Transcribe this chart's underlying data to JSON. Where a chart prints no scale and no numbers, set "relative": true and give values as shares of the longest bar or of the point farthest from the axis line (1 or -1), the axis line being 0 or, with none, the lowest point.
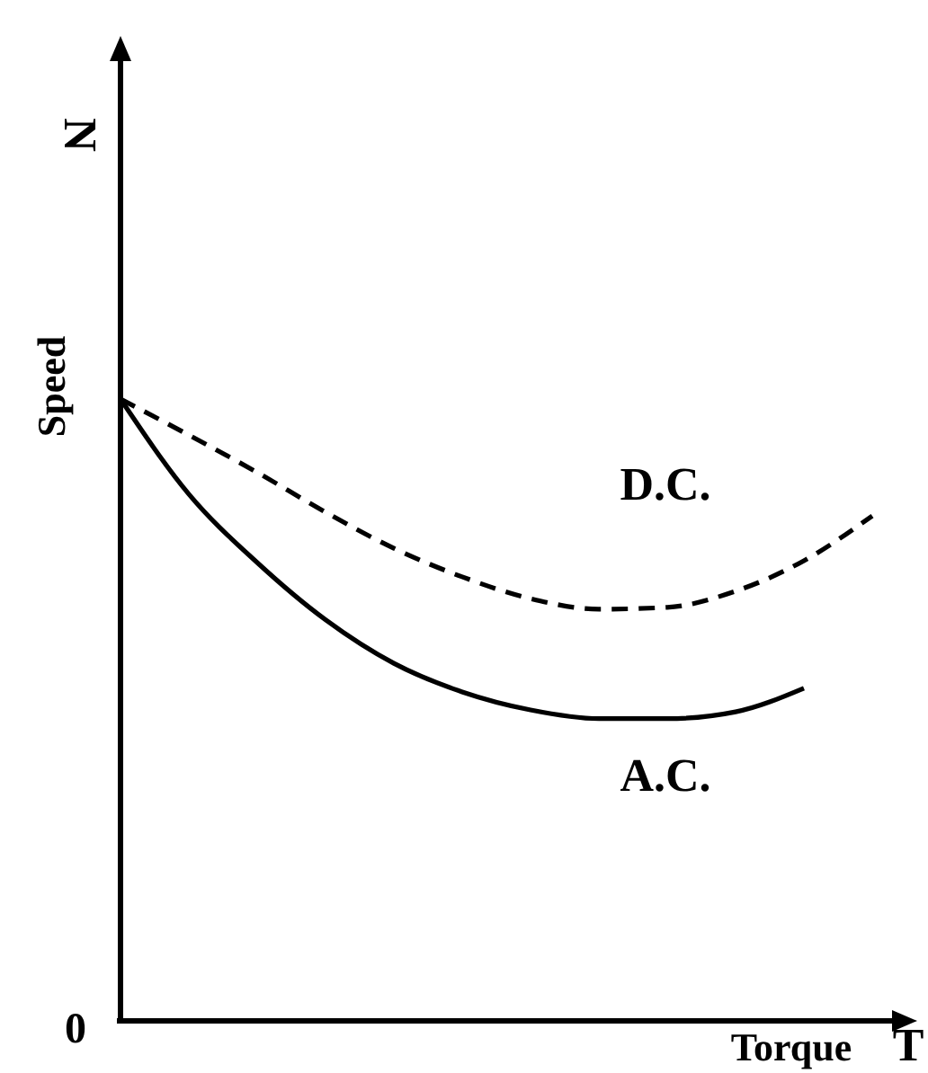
{
  "chart_data": {
    "type": "line",
    "relative": true,
    "xlabel": "Torque",
    "ylabel": "Speed",
    "annotations": [
      "N",
      "T",
      "0"
    ],
    "categories": [
      null,
      null,
      null,
      null,
      null,
      null,
      null,
      null,
      null,
      null,
      null,
      null
    ],
    "series": [
      {
        "name": "D.C.",
        "color": "#000000",
        "line_style": "dashed",
        "values": [
          1,
          0.942,
          0.882,
          0.818,
          0.76,
          0.714,
          0.679,
          0.662,
          0.665,
          0.691,
          0.74,
          0.812
        ]
      },
      {
        "name": "A.C.",
        "color": "#000000",
        "line_style": "solid",
        "values": [
          1,
          0.847,
          0.737,
          0.645,
          0.575,
          0.529,
          0.5,
          0.486,
          0.486,
          0.497,
          0.535,
          null
        ]
      }
    ],
    "legend": false
  }
}
